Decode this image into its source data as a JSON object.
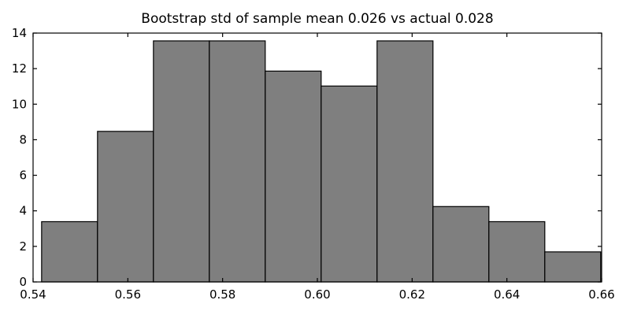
{
  "chart_data": {
    "type": "bar",
    "chart_kind": "histogram",
    "title": "Bootstrap std of sample mean 0.026 vs actual 0.028",
    "xlabel": "",
    "ylabel": "",
    "xlim": [
      0.54,
      0.66
    ],
    "ylim": [
      0,
      14
    ],
    "bin_edges": [
      0.5418,
      0.5536,
      0.5654,
      0.5772,
      0.589,
      0.6008,
      0.6126,
      0.6244,
      0.6362,
      0.648,
      0.6598
    ],
    "values": [
      3.39,
      8.47,
      13.56,
      13.56,
      11.86,
      11.02,
      13.56,
      4.24,
      3.39,
      1.69
    ],
    "xticks": {
      "positions": [
        0.54,
        0.56,
        0.58,
        0.6,
        0.62,
        0.64,
        0.66
      ],
      "labels": [
        "0.54",
        "0.56",
        "0.58",
        "0.60",
        "0.62",
        "0.64",
        "0.66"
      ]
    },
    "yticks": {
      "positions": [
        0,
        2,
        4,
        6,
        8,
        10,
        12,
        14
      ],
      "labels": [
        "0",
        "2",
        "4",
        "6",
        "8",
        "10",
        "12",
        "14"
      ]
    },
    "grid": false,
    "legend": null,
    "bar_fill": "#7f7f7f",
    "bar_edge": "#000000",
    "frame_color": "#000000",
    "background": "#ffffff"
  }
}
